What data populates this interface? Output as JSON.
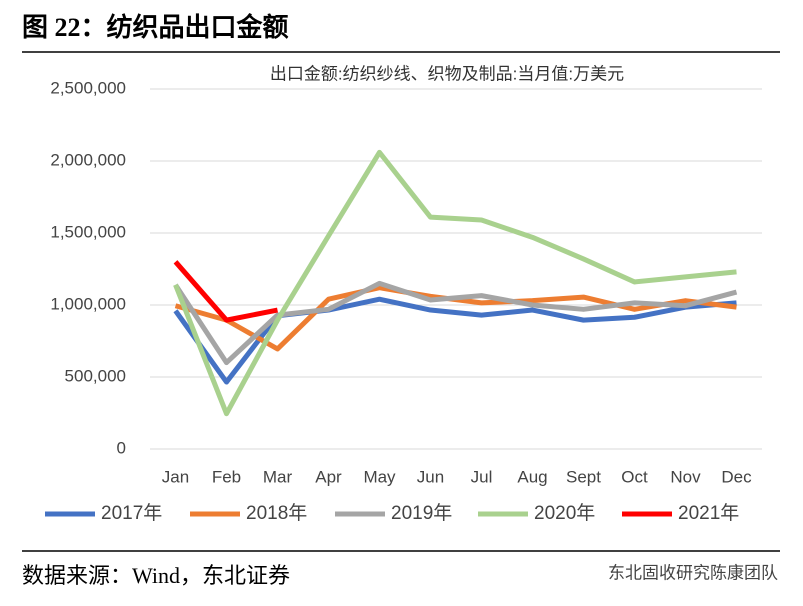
{
  "header": {
    "title": "图 22：纺织品出口金额"
  },
  "chart_data": {
    "type": "line",
    "title": "出口金额:纺织纱线、织物及制品:当月值:万美元",
    "categories": [
      "Jan",
      "Feb",
      "Mar",
      "Apr",
      "May",
      "Jun",
      "Jul",
      "Aug",
      "Sept",
      "Oct",
      "Nov",
      "Dec"
    ],
    "ylim": [
      0,
      2500000
    ],
    "yticks": [
      {
        "value": 0,
        "label": "0"
      },
      {
        "value": 500000,
        "label": "500,000"
      },
      {
        "value": 1000000,
        "label": "1,000,000"
      },
      {
        "value": 1500000,
        "label": "1,500,000"
      },
      {
        "value": 2000000,
        "label": "2,000,000"
      },
      {
        "value": 2500000,
        "label": "2,500,000"
      }
    ],
    "grid": true,
    "legend": "bottom",
    "series": [
      {
        "name": "2017年",
        "color": "#4472c4",
        "values": [
          960000,
          465000,
          925000,
          965000,
          1040000,
          965000,
          930000,
          965000,
          895000,
          915000,
          985000,
          1015000
        ]
      },
      {
        "name": "2018年",
        "color": "#ed7d31",
        "values": [
          995000,
          895000,
          695000,
          1040000,
          1120000,
          1060000,
          1015000,
          1030000,
          1055000,
          970000,
          1030000,
          985000
        ]
      },
      {
        "name": "2019年",
        "color": "#a5a5a5",
        "values": [
          1140000,
          600000,
          930000,
          970000,
          1150000,
          1035000,
          1065000,
          1000000,
          970000,
          1015000,
          995000,
          1090000
        ]
      },
      {
        "name": "2020年",
        "color": "#a9d18e",
        "values": [
          1140000,
          245000,
          895000,
          1480000,
          2060000,
          1610000,
          1590000,
          1470000,
          1320000,
          1160000,
          1195000,
          1230000
        ]
      },
      {
        "name": "2021年",
        "color": "#ff0000",
        "values": [
          1300000,
          895000,
          965000,
          null,
          null,
          null,
          null,
          null,
          null,
          null,
          null,
          null
        ]
      }
    ]
  },
  "footer": {
    "source": "数据来源：Wind，东北证券",
    "watermark": "东北固收研究陈康团队"
  }
}
